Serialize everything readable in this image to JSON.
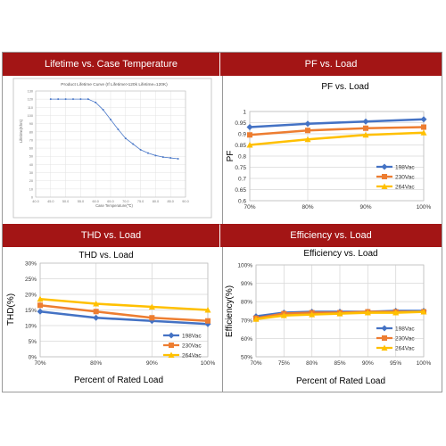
{
  "panels": {
    "lifetime": {
      "header": "Lifetime vs. Case Temperature"
    },
    "pf": {
      "header": "PF vs. Load"
    },
    "thd": {
      "header": "THD vs. Load"
    },
    "eff": {
      "header": "Efficiency vs. Load"
    }
  },
  "colors": {
    "header_bg": "#a31515",
    "s198": "#4472c4",
    "s230": "#ed7d31",
    "s264": "#ffc000",
    "lifetime_line": "#4a78c8"
  },
  "chart_data": [
    {
      "id": "lifetime",
      "type": "line",
      "title": "Product Lifetime Curve (If Lifetime>120k Lifetime=120K)",
      "xlabel": "Case Temperature(℃)",
      "ylabel": "Lifetime(Khrs)",
      "x": [
        40,
        45,
        50,
        55,
        60,
        65,
        70,
        75,
        80,
        85,
        90
      ],
      "xtick_labels": [
        "40.0",
        "45.0",
        "50.0",
        "55.0",
        "60.0",
        "65.0",
        "70.0",
        "75.0",
        "80.0",
        "85.0",
        "90.0"
      ],
      "yticks": [
        0,
        10,
        20,
        30,
        40,
        50,
        60,
        70,
        80,
        90,
        100,
        110,
        120,
        130
      ],
      "xlim": [
        40,
        90
      ],
      "ylim": [
        0,
        130
      ],
      "series": [
        {
          "x": [
            45,
            47.5,
            50,
            52.5,
            55,
            57.5,
            60,
            62.5,
            65,
            67.5,
            70,
            72.5,
            75,
            77.5,
            80,
            82.5,
            85,
            87.5
          ],
          "values": [
            120,
            120,
            120,
            120,
            120,
            120,
            116,
            107,
            95,
            83,
            72,
            65,
            58,
            54,
            51,
            49,
            48,
            47
          ]
        }
      ]
    },
    {
      "id": "pf",
      "type": "line",
      "title": "PF vs. Load",
      "ylabel": "PF",
      "categories": [
        "70%",
        "80%",
        "90%",
        "100%"
      ],
      "yticks": [
        "0.6",
        "0.65",
        "0.7",
        "0.75",
        "0.8",
        "0.85",
        "0.9",
        "0.95",
        "1"
      ],
      "ylim": [
        0.6,
        1.0
      ],
      "legend": "right",
      "series": [
        {
          "name": "198Vac",
          "values": [
            0.93,
            0.945,
            0.955,
            0.965
          ]
        },
        {
          "name": "230Vac",
          "values": [
            0.895,
            0.915,
            0.925,
            0.93
          ]
        },
        {
          "name": "264Vac",
          "values": [
            0.85,
            0.875,
            0.895,
            0.905
          ]
        }
      ]
    },
    {
      "id": "thd",
      "type": "line",
      "title": "THD vs. Load",
      "ylabel": "THD(%)",
      "xlabel": "Percent of Rated Load",
      "categories": [
        "70%",
        "80%",
        "90%",
        "100%"
      ],
      "yticks": [
        "0%",
        "5%",
        "10%",
        "15%",
        "20%",
        "25%",
        "30%"
      ],
      "ylim": [
        0,
        30
      ],
      "legend": "bottom-right",
      "series": [
        {
          "name": "198Vac",
          "values": [
            14.5,
            12.5,
            11.5,
            10.5
          ]
        },
        {
          "name": "230Vac",
          "values": [
            16.5,
            14.5,
            12.5,
            11.5
          ]
        },
        {
          "name": "264Vac",
          "values": [
            18.5,
            17,
            16,
            15
          ]
        }
      ]
    },
    {
      "id": "eff",
      "type": "line",
      "title": "Efficiency vs. Load",
      "ylabel": "Efficiency(%)",
      "xlabel": "Percent of  Rated Load",
      "categories": [
        "70%",
        "75%",
        "80%",
        "85%",
        "90%",
        "95%",
        "100%"
      ],
      "yticks": [
        "50%",
        "60%",
        "70%",
        "80%",
        "90%",
        "100%"
      ],
      "ylim": [
        50,
        100
      ],
      "legend": "bottom-right",
      "series": [
        {
          "name": "198Vac",
          "values": [
            72,
            74,
            74.5,
            74.5,
            74.5,
            75,
            75
          ]
        },
        {
          "name": "230Vac",
          "values": [
            71,
            73.5,
            74,
            74,
            74.5,
            74.5,
            74.5
          ]
        },
        {
          "name": "264Vac",
          "values": [
            70.5,
            72.5,
            73,
            73.5,
            74,
            74,
            74.5
          ]
        }
      ]
    }
  ]
}
